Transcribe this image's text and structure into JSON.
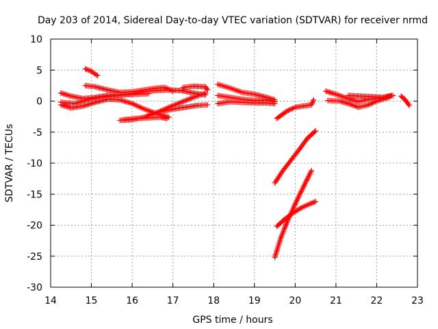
{
  "chart_data": {
    "type": "scatter",
    "title": "Day 203 of 2014, Sidereal Day-to-day VTEC variation (SDTVAR) for receiver nrmd",
    "xlabel": "GPS time / hours",
    "ylabel": "SDTVAR / TECUs",
    "xlim": [
      14,
      23
    ],
    "ylim": [
      -30,
      10
    ],
    "xticks": [
      "14",
      "15",
      "16",
      "17",
      "18",
      "19",
      "20",
      "21",
      "22",
      "23"
    ],
    "yticks": [
      "10",
      "5",
      "0",
      "-5",
      "-10",
      "-15",
      "-20",
      "-25",
      "-30"
    ],
    "grid": true,
    "legend": "none",
    "marker": "plus",
    "color": "#ff0000",
    "series": [
      {
        "points": [
          [
            14.85,
            5.2
          ],
          [
            15.0,
            4.8
          ],
          [
            15.15,
            4.1
          ]
        ]
      },
      {
        "points": [
          [
            14.85,
            2.5
          ],
          [
            15.1,
            2.3
          ],
          [
            15.4,
            1.8
          ],
          [
            15.7,
            1.4
          ],
          [
            16.0,
            1.5
          ],
          [
            16.3,
            1.8
          ],
          [
            16.6,
            2.1
          ],
          [
            16.8,
            2.2
          ],
          [
            17.0,
            1.6
          ]
        ]
      },
      {
        "points": [
          [
            14.25,
            1.3
          ],
          [
            14.5,
            0.8
          ],
          [
            14.8,
            0.4
          ],
          [
            15.1,
            0.6
          ],
          [
            15.4,
            0.9
          ],
          [
            15.7,
            1.0
          ],
          [
            16.0,
            1.2
          ],
          [
            16.3,
            1.5
          ],
          [
            16.6,
            1.7
          ],
          [
            16.9,
            1.8
          ],
          [
            17.2,
            1.7
          ],
          [
            17.5,
            1.3
          ],
          [
            17.8,
            1.0
          ]
        ]
      },
      {
        "points": [
          [
            14.25,
            -0.2
          ],
          [
            14.6,
            -0.4
          ],
          [
            14.9,
            0.2
          ],
          [
            15.2,
            0.6
          ],
          [
            15.5,
            0.8
          ],
          [
            15.8,
            1.0
          ],
          [
            16.1,
            1.1
          ],
          [
            16.4,
            1.2
          ]
        ]
      },
      {
        "points": [
          [
            14.25,
            -0.6
          ],
          [
            14.5,
            -1.1
          ],
          [
            14.8,
            -0.8
          ],
          [
            15.1,
            -0.2
          ],
          [
            15.4,
            0.3
          ],
          [
            15.7,
            0.2
          ],
          [
            16.0,
            -0.4
          ],
          [
            16.3,
            -1.3
          ],
          [
            16.6,
            -2.0
          ],
          [
            16.9,
            -2.6
          ]
        ]
      },
      {
        "points": [
          [
            15.7,
            -3.1
          ],
          [
            16.0,
            -3.0
          ],
          [
            16.3,
            -2.6
          ],
          [
            16.6,
            -1.9
          ],
          [
            16.9,
            -1.0
          ],
          [
            17.2,
            -0.2
          ],
          [
            17.5,
            0.6
          ],
          [
            17.8,
            1.3
          ]
        ]
      },
      {
        "points": [
          [
            15.8,
            -3.0
          ],
          [
            16.1,
            -2.8
          ],
          [
            16.4,
            -2.7
          ],
          [
            16.7,
            -2.6
          ],
          [
            16.85,
            -2.8
          ]
        ]
      },
      {
        "points": [
          [
            16.4,
            -2.2
          ],
          [
            16.7,
            -1.7
          ],
          [
            17.0,
            -1.3
          ],
          [
            17.3,
            -1.0
          ],
          [
            17.6,
            -0.7
          ],
          [
            17.85,
            -0.6
          ]
        ]
      },
      {
        "points": [
          [
            17.25,
            2.2
          ],
          [
            17.5,
            2.4
          ],
          [
            17.8,
            2.3
          ],
          [
            17.85,
            1.8
          ]
        ]
      },
      {
        "points": [
          [
            18.1,
            2.7
          ],
          [
            18.4,
            2.1
          ],
          [
            18.7,
            1.4
          ],
          [
            19.0,
            1.1
          ],
          [
            19.3,
            0.6
          ],
          [
            19.5,
            0.2
          ]
        ]
      },
      {
        "points": [
          [
            18.1,
            0.9
          ],
          [
            18.4,
            0.6
          ],
          [
            18.7,
            0.3
          ],
          [
            19.0,
            0.1
          ],
          [
            19.3,
            0.2
          ],
          [
            19.5,
            -0.1
          ]
        ]
      },
      {
        "points": [
          [
            18.1,
            -0.4
          ],
          [
            18.4,
            -0.1
          ],
          [
            18.7,
            -0.2
          ],
          [
            19.0,
            -0.3
          ],
          [
            19.3,
            -0.3
          ],
          [
            19.5,
            -0.4
          ]
        ]
      },
      {
        "points": [
          [
            19.55,
            -2.8
          ],
          [
            19.8,
            -1.6
          ],
          [
            20.0,
            -1.0
          ],
          [
            20.2,
            -0.8
          ],
          [
            20.4,
            -0.6
          ],
          [
            20.45,
            0.2
          ]
        ]
      },
      {
        "points": [
          [
            19.5,
            -13.2
          ],
          [
            19.7,
            -11.2
          ],
          [
            19.9,
            -9.5
          ],
          [
            20.1,
            -7.8
          ],
          [
            20.3,
            -6.0
          ],
          [
            20.5,
            -4.8
          ]
        ]
      },
      {
        "points": [
          [
            19.5,
            -25.2
          ],
          [
            19.65,
            -22.0
          ],
          [
            19.8,
            -19.5
          ],
          [
            19.95,
            -17.3
          ],
          [
            20.1,
            -15.2
          ],
          [
            20.25,
            -13.2
          ],
          [
            20.4,
            -11.2
          ]
        ]
      },
      {
        "points": [
          [
            19.55,
            -20.2
          ],
          [
            19.75,
            -19.0
          ],
          [
            19.95,
            -18.0
          ],
          [
            20.15,
            -17.2
          ],
          [
            20.35,
            -16.6
          ],
          [
            20.5,
            -16.2
          ]
        ]
      },
      {
        "points": [
          [
            20.75,
            1.6
          ],
          [
            21.0,
            1.1
          ],
          [
            21.3,
            0.4
          ],
          [
            21.55,
            -0.1
          ],
          [
            21.8,
            0.3
          ],
          [
            22.1,
            0.5
          ],
          [
            22.35,
            0.9
          ]
        ]
      },
      {
        "points": [
          [
            20.8,
            0.1
          ],
          [
            21.1,
            0.0
          ],
          [
            21.35,
            -0.5
          ],
          [
            21.55,
            -1.0
          ],
          [
            21.8,
            -0.6
          ],
          [
            22.0,
            0.0
          ],
          [
            22.3,
            0.6
          ]
        ]
      },
      {
        "points": [
          [
            21.3,
            0.9
          ],
          [
            21.6,
            0.8
          ],
          [
            21.9,
            0.7
          ],
          [
            22.2,
            0.6
          ],
          [
            22.4,
            0.9
          ]
        ]
      },
      {
        "points": [
          [
            22.6,
            0.8
          ],
          [
            22.7,
            0.2
          ],
          [
            22.8,
            -0.7
          ]
        ]
      }
    ]
  }
}
